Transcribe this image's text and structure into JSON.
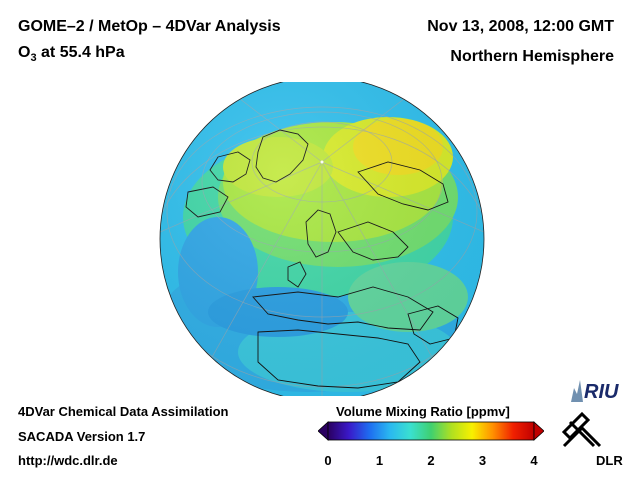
{
  "header": {
    "title": "GOME–2 / MetOp – 4DVar Analysis",
    "subtitle_species": "O",
    "subtitle_sub": "3",
    "subtitle_rest": " at 55.4 hPa",
    "datetime": "Nov 13, 2008, 12:00 GMT",
    "region": "Northern Hemisphere"
  },
  "footer": {
    "line1": "4DVar Chemical Data Assimilation",
    "line2": "SACADA Version 1.7",
    "line3": "http://wdc.dlr.de"
  },
  "colorbar": {
    "title": "Volume Mixing Ratio [ppmv]",
    "ticks": [
      "0",
      "1",
      "2",
      "3",
      "4"
    ],
    "range": [
      0,
      4
    ],
    "colors": [
      "#2a0060",
      "#3a18c8",
      "#1e6cf0",
      "#2ab8f0",
      "#3ae0d0",
      "#3fd070",
      "#b0e020",
      "#f8f000",
      "#ff9000",
      "#f02000",
      "#c00000"
    ]
  },
  "logos": {
    "riu": "RIU",
    "dlr": "DLR"
  },
  "map": {
    "projection": "orthographic",
    "hemisphere": "north",
    "ocean_base_color": "#2ab8f0",
    "high_ozone_color": "#f0e020"
  }
}
